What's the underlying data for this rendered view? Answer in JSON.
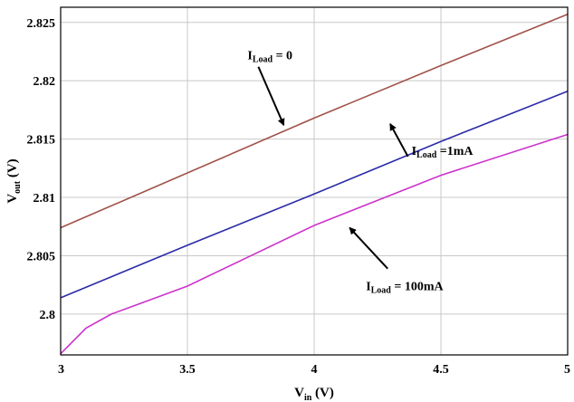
{
  "chart_data": {
    "type": "line",
    "xlabel": {
      "main": "V",
      "sub": "in",
      "unit": " (V)"
    },
    "ylabel": {
      "main": "V",
      "sub": "out",
      "unit": " (V)"
    },
    "xlim": [
      3,
      5
    ],
    "ylim": [
      2.7965,
      2.8263
    ],
    "xticks": [
      3,
      3.5,
      4,
      4.5,
      5
    ],
    "xtick_labels": [
      "3",
      "3.5",
      "4",
      "4.5",
      "5"
    ],
    "yticks": [
      2.8,
      2.805,
      2.81,
      2.815,
      2.82,
      2.825
    ],
    "ytick_labels": [
      "2.8",
      "2.805",
      "2.81",
      "2.815",
      "2.82",
      "2.825"
    ],
    "grid": true,
    "series": [
      {
        "color": "#a0524a",
        "x": [
          3,
          3.5,
          4,
          4.5,
          5
        ],
        "y": [
          2.8074,
          2.8121,
          2.8168,
          2.8213,
          2.8257
        ]
      },
      {
        "color": "#2b2ba8",
        "x": [
          3,
          3.5,
          4,
          4.5,
          5
        ],
        "y": [
          2.8014,
          2.8059,
          2.8103,
          2.8148,
          2.8191
        ]
      },
      {
        "color": "#cc33cc",
        "x": [
          3,
          3.1,
          3.2,
          3.3,
          3.5,
          4,
          4.5,
          5
        ],
        "y": [
          2.7966,
          2.7988,
          2.8,
          2.8008,
          2.8024,
          2.8076,
          2.8119,
          2.8154
        ]
      }
    ],
    "annotations": [
      {
        "main": "I",
        "sub": "Load",
        "rest": " = 0",
        "from": [
          3.78,
          2.8212
        ],
        "to": [
          3.88,
          2.8162
        ]
      },
      {
        "main": "I",
        "sub": "Load",
        "rest": " =1mA",
        "from": [
          4.37,
          2.8135
        ],
        "to": [
          4.3,
          2.8163
        ]
      },
      {
        "main": "I",
        "sub": "Load",
        "rest": " = 100mA",
        "from": [
          4.29,
          2.8039
        ],
        "to": [
          4.14,
          2.8074
        ]
      }
    ]
  }
}
